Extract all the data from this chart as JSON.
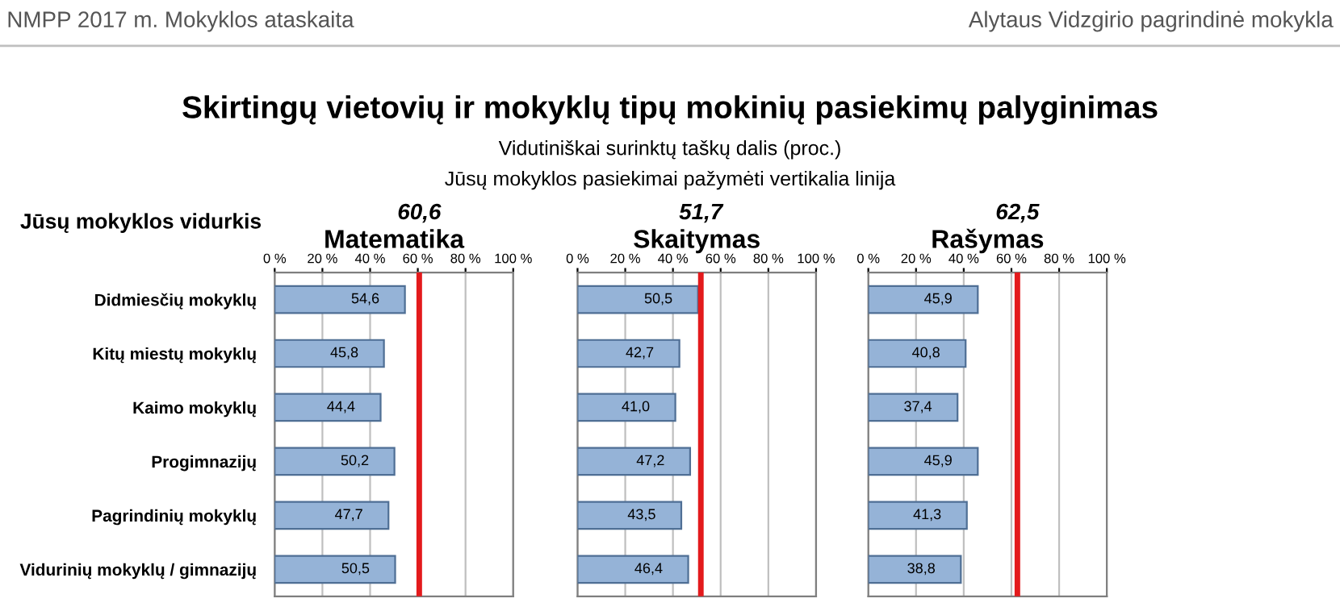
{
  "chart_data": [
    {
      "type": "bar",
      "orientation": "horizontal",
      "title": "Matematika",
      "categories": [
        "Didmiesčių mokyklų",
        "Kitų miestų mokyklų",
        "Kaimo mokyklų",
        "Progimnazijų",
        "Pagrindinių mokyklų",
        "Vidurinių mokyklų / gimnazijų"
      ],
      "series": [
        {
          "color": "#95b3d7",
          "values": [
            54.6,
            45.8,
            44.4,
            50.2,
            47.7,
            50.5
          ],
          "value_labels": [
            "54,6",
            "45,8",
            "44,4",
            "50,2",
            "47,7",
            "50,5"
          ]
        }
      ],
      "xlim": [
        0,
        100
      ],
      "xticks": [
        {
          "value": 0,
          "label": "0 %"
        },
        {
          "value": 20,
          "label": "20 %"
        },
        {
          "value": 40,
          "label": "40 %"
        },
        {
          "value": 60,
          "label": "60 %"
        },
        {
          "value": 80,
          "label": "80 %"
        },
        {
          "value": 100,
          "label": "100 %"
        }
      ],
      "grid": "x",
      "ref_lines": [
        {
          "axis": "x",
          "value": 60.6,
          "label": "60,6",
          "color": "#e31a1c"
        }
      ],
      "annotations": [
        "NMPP 2017 m. Mokyklos ataskaita",
        "Alytaus Vidzgirio pagrindinė mokykla",
        "Skirtingų vietovių ir mokyklų tipų mokinių pasiekimų palyginimas",
        "Vidutiniškai surinktų taškų dalis (proc.)",
        "Jūsų mokyklos pasiekimai pažymėti vertikalia linija",
        "Jūsų mokyklos vidurkis"
      ]
    },
    {
      "type": "bar",
      "orientation": "horizontal",
      "title": "Skaitymas",
      "categories": [
        null,
        null,
        null,
        null,
        null,
        null
      ],
      "series": [
        {
          "color": "#95b3d7",
          "values": [
            50.5,
            42.7,
            41.0,
            47.2,
            43.5,
            46.4
          ],
          "value_labels": [
            "50,5",
            "42,7",
            "41,0",
            "47,2",
            "43,5",
            "46,4"
          ]
        }
      ],
      "xlim": [
        0,
        100
      ],
      "xticks": [
        {
          "value": 0,
          "label": "0 %"
        },
        {
          "value": 20,
          "label": "20 %"
        },
        {
          "value": 40,
          "label": "40 %"
        },
        {
          "value": 60,
          "label": "60 %"
        },
        {
          "value": 80,
          "label": "80 %"
        },
        {
          "value": 100,
          "label": "100 %"
        }
      ],
      "grid": "x",
      "ref_lines": [
        {
          "axis": "x",
          "value": 51.7,
          "label": "51,7",
          "color": "#e31a1c"
        }
      ]
    },
    {
      "type": "bar",
      "orientation": "horizontal",
      "title": "Rašymas",
      "categories": [
        null,
        null,
        null,
        null,
        null,
        null
      ],
      "series": [
        {
          "color": "#95b3d7",
          "values": [
            45.9,
            40.8,
            37.4,
            45.9,
            41.3,
            38.8
          ],
          "value_labels": [
            "45,9",
            "40,8",
            "37,4",
            "45,9",
            "41,3",
            "38,8"
          ]
        }
      ],
      "xlim": [
        0,
        100
      ],
      "xticks": [
        {
          "value": 0,
          "label": "0 %"
        },
        {
          "value": 20,
          "label": "20 %"
        },
        {
          "value": 40,
          "label": "40 %"
        },
        {
          "value": 60,
          "label": "60 %"
        },
        {
          "value": 80,
          "label": "80 %"
        },
        {
          "value": 100,
          "label": "100 %"
        }
      ],
      "grid": "x",
      "ref_lines": [
        {
          "axis": "x",
          "value": 62.5,
          "label": "62,5",
          "color": "#e31a1c"
        }
      ]
    }
  ]
}
